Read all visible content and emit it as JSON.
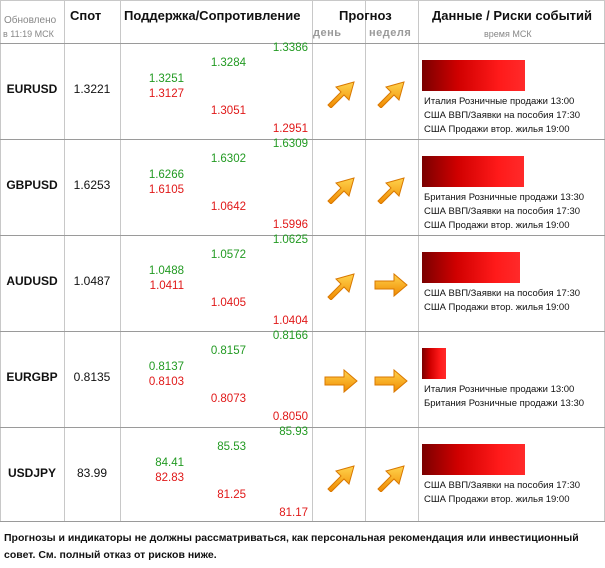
{
  "header": {
    "updated_line1": "Обновлено",
    "updated_line2": "в 11:19 МСК",
    "spot": "Спот",
    "support_resistance": "Поддержка/Сопротивление",
    "forecast": "Прогноз",
    "forecast_day": "день",
    "forecast_week": "неделя",
    "events": "Данные / Риски событий",
    "events_time": "время МСК"
  },
  "rows": [
    {
      "pair": "EURUSD",
      "spot": "1.3221",
      "s1": "1.3251",
      "r1": "1.3127",
      "s2": "1.3284",
      "r2": "1.3051",
      "s3": "1.3386",
      "r3": "1.2951",
      "day_dir": "up",
      "week_dir": "up",
      "risk_level": 0.86,
      "events": [
        "Италия Розничные продажи 13:00",
        "США ВВП/Заявки на пособия 17:30",
        "США Продажи втор. жилья 19:00"
      ]
    },
    {
      "pair": "GBPUSD",
      "spot": "1.6253",
      "s1": "1.6266",
      "r1": "1.6105",
      "s2": "1.6302",
      "r2": "1.0642",
      "s3": "1.6309",
      "r3": "1.5996",
      "day_dir": "up",
      "week_dir": "up",
      "risk_level": 0.85,
      "events": [
        "Британия Розничные продажи 13:30",
        "США ВВП/Заявки на пособия 17:30",
        "США Продажи втор. жилья 19:00"
      ]
    },
    {
      "pair": "AUDUSD",
      "spot": "1.0487",
      "s1": "1.0488",
      "r1": "1.0411",
      "s2": "1.0572",
      "r2": "1.0405",
      "s3": "1.0625",
      "r3": "1.0404",
      "day_dir": "up",
      "week_dir": "right",
      "risk_level": 0.82,
      "events": [
        "США ВВП/Заявки на пособия 17:30",
        "США Продажи втор. жилья 19:00"
      ]
    },
    {
      "pair": "EURGBP",
      "spot": "0.8135",
      "s1": "0.8137",
      "r1": "0.8103",
      "s2": "0.8157",
      "r2": "0.8073",
      "s3": "0.8166",
      "r3": "0.8050",
      "day_dir": "right",
      "week_dir": "right",
      "risk_level": 0.2,
      "events": [
        "Италия Розничные продажи 13:00",
        "Британия Розничные продажи 13:30"
      ]
    },
    {
      "pair": "USDJPY",
      "spot": "83.99",
      "s1": "84.41",
      "r1": "82.83",
      "s2": "85.53",
      "r2": "81.25",
      "s3": "85.93",
      "r3": "81.17",
      "day_dir": "up",
      "week_dir": "up",
      "risk_level": 0.86,
      "events": [
        "США ВВП/Заявки на пособия 17:30",
        "США Продажи втор. жилья 19:00"
      ]
    }
  ],
  "disclaimer": "Прогнозы и индикаторы не должны рассматриваться, как персональная рекомендация или инвестиционный совет. См. полный отказ от рисков ниже.",
  "colors": {
    "support": "#229a22",
    "resistance": "#e01818",
    "arrow": "#ffa500"
  },
  "icons": {
    "up": "arrow-up-right-icon",
    "right": "arrow-right-icon"
  }
}
